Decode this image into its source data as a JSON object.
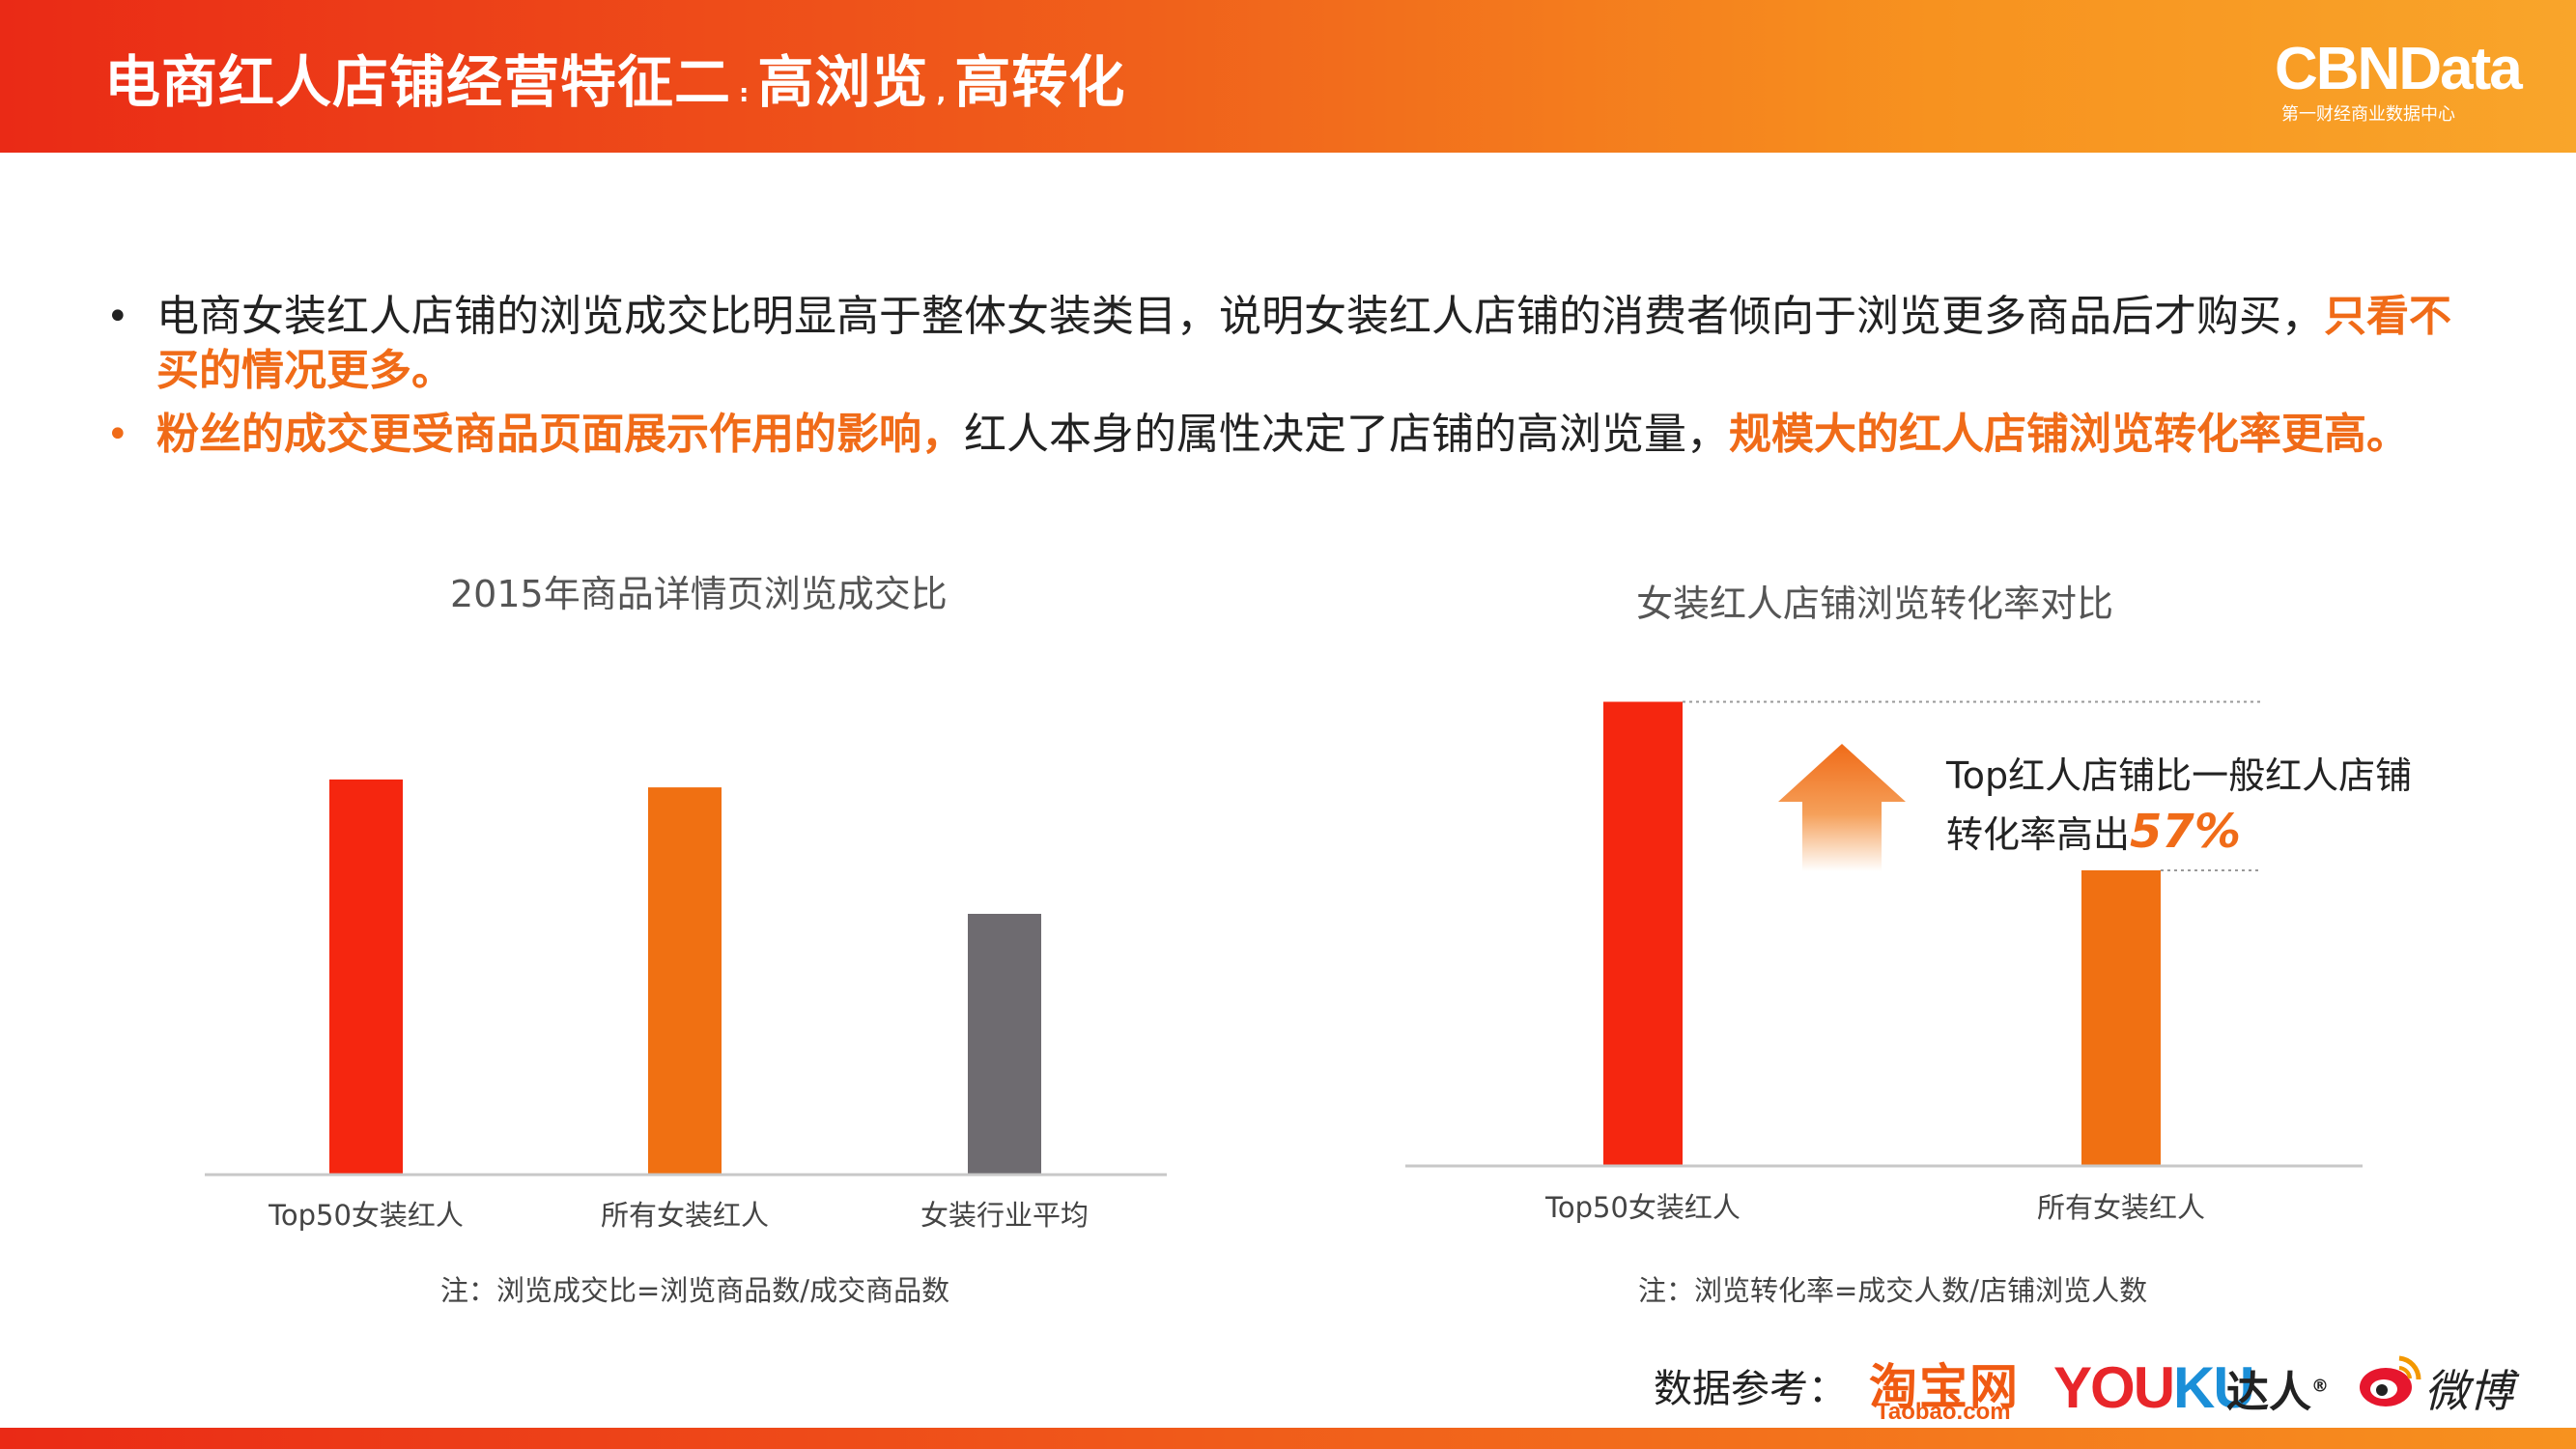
{
  "header": {
    "title_part1": "电商红人店铺经营特征二",
    "sep1": ":",
    "title_part2": "高浏览",
    "sep2": ",",
    "title_part3": "高转化",
    "brand": "CBNData",
    "brand_sub": "第一财经商业数据中心"
  },
  "bullets": [
    {
      "plain": "电商女装红人店铺的浏览成交比明显高于整体女装类目，说明女装红人店铺的消费者倾向于浏览更多商品后才购买，",
      "highlight": "只看不买的情况更多。"
    },
    {
      "highlight1": "粉丝的成交更受商品页面展示作用的影响，",
      "plain": "红人本身的属性决定了店铺的高浏览量，",
      "highlight2": "规模大的红人店铺浏览转化率更高。"
    }
  ],
  "chart_data": [
    {
      "type": "bar",
      "title": "2015年商品详情页浏览成交比",
      "categories": [
        "Top50女装红人",
        "所有女装红人",
        "女装行业平均"
      ],
      "values": [
        100,
        98,
        66
      ],
      "colors": [
        "#f5260f",
        "#f07012",
        "#6e6b70"
      ],
      "ylim": [
        0,
        110
      ],
      "axis_labels_shown": false,
      "note": "注：浏览成交比=浏览商品数/成交商品数"
    },
    {
      "type": "bar",
      "title": "女装红人店铺浏览转化率对比",
      "categories": [
        "Top50女装红人",
        "所有女装红人"
      ],
      "values": [
        157,
        100
      ],
      "colors": [
        "#f5260f",
        "#f07012"
      ],
      "ylim": [
        0,
        165
      ],
      "axis_labels_shown": false,
      "annotation": {
        "text_line1": "Top红人店铺比一般红人店铺",
        "text_line2": "转化率高出",
        "value": "57%"
      },
      "note": "注：浏览转化率=成交人数/店铺浏览人数"
    }
  ],
  "footer": {
    "sources_label": "数据参考：",
    "taobao": "淘宝网",
    "taobao_sub": "Taobao.com",
    "youku_a": "YOU",
    "youku_b": "KU",
    "daren": "达人",
    "daren_mark": "®",
    "weibo": "微博"
  },
  "icons": {
    "arrow": "up-arrow-icon",
    "weibo": "weibo-eye-icon"
  }
}
